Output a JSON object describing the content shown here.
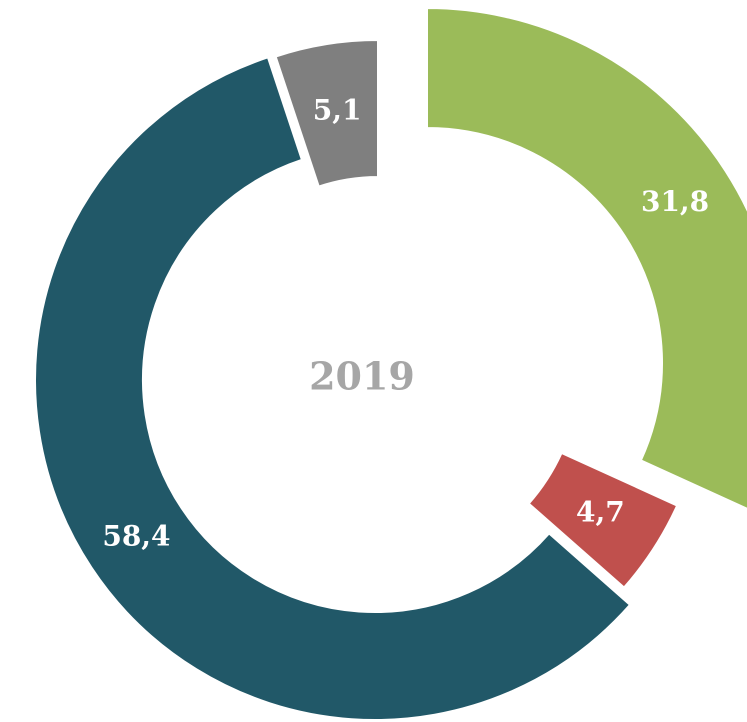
{
  "chart_data": {
    "type": "pie",
    "title": "2019",
    "values": [
      31.8,
      4.7,
      58.4,
      5.1
    ],
    "value_labels": [
      "31,8",
      "4,7",
      "58,4",
      "5,1"
    ],
    "colors": [
      "#9bbb59",
      "#c0504d",
      "#215868",
      "#7f7f7f"
    ]
  }
}
